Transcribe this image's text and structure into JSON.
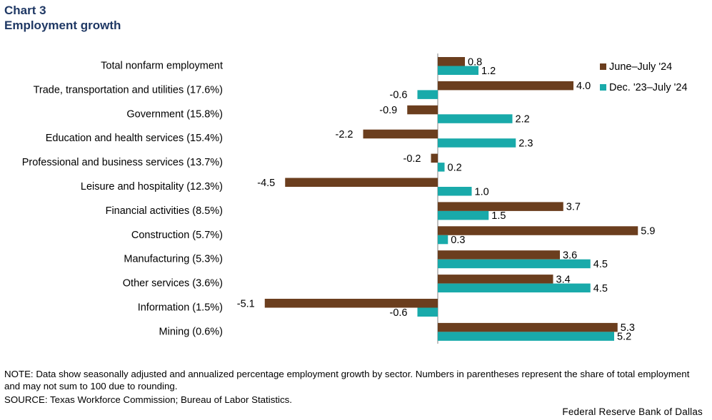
{
  "header": {
    "chart_number": "Chart 3",
    "title": "Employment growth"
  },
  "footer": {
    "note": "NOTE: Data show seasonally adjusted and annualized percentage employment growth by sector. Numbers in parentheses represent the share of total employment and may not sum to 100 due to rounding.",
    "source": "SOURCE: Texas Workforce Commission; Bureau of Labor Statistics.",
    "brand": "Federal Reserve Bank of Dallas"
  },
  "chart_data": {
    "type": "bar",
    "orientation": "horizontal",
    "categories": [
      "Total nonfarm employment",
      "Trade, transportation and utilities (17.6%)",
      "Government (15.8%)",
      "Education and health services (15.4%)",
      "Professional and business services (13.7%)",
      "Leisure and hospitality (12.3%)",
      "Financial activities (8.5%)",
      "Construction (5.7%)",
      "Manufacturing (5.3%)",
      "Other services (3.6%)",
      "Information (1.5%)",
      "Mining (0.6%)"
    ],
    "series": [
      {
        "name": "June–July '24",
        "color": "#6b3e1e",
        "values": [
          0.8,
          4.0,
          -0.9,
          -2.2,
          -0.2,
          -4.5,
          3.7,
          5.9,
          3.6,
          3.4,
          -5.1,
          5.3
        ],
        "labels": [
          "0.8",
          "4.0",
          "-0.9",
          "-2.2",
          "-0.2",
          "-4.5",
          "3.7",
          "5.9",
          "3.6",
          "3.4",
          "-5.1",
          "5.3"
        ]
      },
      {
        "name": "Dec. '23–July '24",
        "color": "#19aaaa",
        "values": [
          1.2,
          -0.6,
          2.2,
          2.3,
          0.2,
          1.0,
          1.5,
          0.3,
          4.5,
          4.5,
          -0.6,
          5.2
        ],
        "labels": [
          "1.2",
          "-0.6",
          "2.2",
          "2.3",
          "0.2",
          "1.0",
          "1.5",
          "0.3",
          "4.5",
          "4.5",
          "-0.6",
          "5.2"
        ]
      }
    ],
    "xlim": [
      -6,
      6
    ],
    "grid": false,
    "legend_position": "top-right"
  }
}
